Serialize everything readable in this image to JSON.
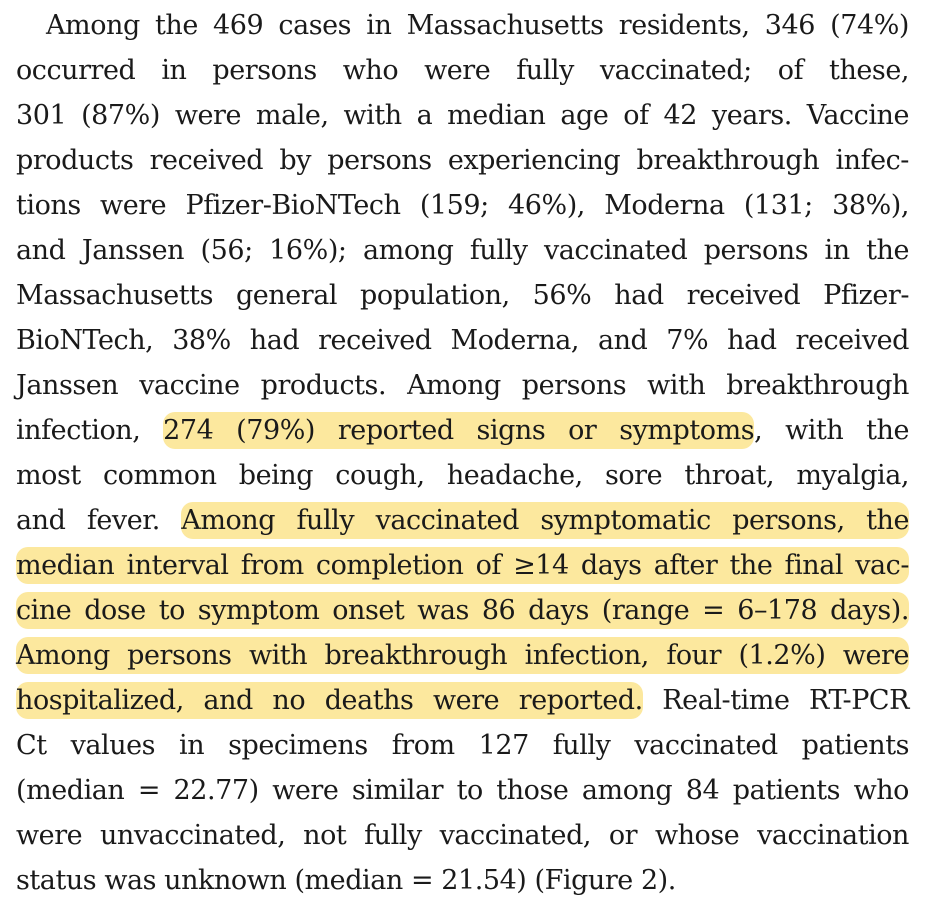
{
  "document": {
    "highlight_color": "#fce89e",
    "text_color": "#1a1a1a",
    "lines": [
      {
        "segments": [
          {
            "text": "Among the 469 cases in Massachusetts residents, 346 (74%)"
          }
        ]
      },
      {
        "segments": [
          {
            "text": "occurred in persons who were fully vaccinated; of these,"
          }
        ]
      },
      {
        "segments": [
          {
            "text": "301 (87%) were male, with a median age of 42 years. Vaccine"
          }
        ]
      },
      {
        "segments": [
          {
            "text": "products received by persons experiencing breakthrough infec-"
          }
        ]
      },
      {
        "segments": [
          {
            "text": "tions were Pfizer-BioNTech (159; 46%), Moderna (131; 38%),"
          }
        ]
      },
      {
        "segments": [
          {
            "text": "and Janssen (56; 16%); among fully vaccinated persons in the"
          }
        ]
      },
      {
        "segments": [
          {
            "text": "Massachusetts general population, 56% had received Pfizer-"
          }
        ]
      },
      {
        "segments": [
          {
            "text": "BioNTech, 38% had received Moderna, and 7% had received"
          }
        ]
      },
      {
        "segments": [
          {
            "text": "Janssen vaccine products. Among persons with breakthrough"
          }
        ]
      },
      {
        "segments": [
          {
            "text": "infection, "
          },
          {
            "text": "274 (79%) reported signs or symptoms",
            "highlight": true
          },
          {
            "text": ", with the"
          }
        ]
      },
      {
        "segments": [
          {
            "text": "most common being cough, headache, sore throat, myalgia,"
          }
        ]
      },
      {
        "segments": [
          {
            "text": "and fever. "
          },
          {
            "text": "Among fully vaccinated symptomatic persons, the",
            "highlight": true
          }
        ]
      },
      {
        "segments": [
          {
            "text": "median interval from completion of ≥14 days after the final vac-",
            "highlight": true
          }
        ]
      },
      {
        "segments": [
          {
            "text": "cine dose to symptom onset was 86 days (range = 6–178 days).",
            "highlight": true
          }
        ]
      },
      {
        "segments": [
          {
            "text": "Among persons with breakthrough infection, four (1.2%) were",
            "highlight": true
          }
        ]
      },
      {
        "segments": [
          {
            "text": "hospitalized, and no deaths were reported.",
            "highlight": true
          },
          {
            "text": " Real-time RT-PCR"
          }
        ]
      },
      {
        "segments": [
          {
            "text": "Ct values in specimens from 127 fully vaccinated patients"
          }
        ]
      },
      {
        "segments": [
          {
            "text": "(median = 22.77) were similar to those among 84 patients who"
          }
        ]
      },
      {
        "segments": [
          {
            "text": "were unvaccinated, not fully vaccinated, or whose vaccination"
          }
        ]
      },
      {
        "segments": [
          {
            "text": "status was unknown (median = 21.54) (Figure 2)."
          }
        ]
      }
    ]
  }
}
